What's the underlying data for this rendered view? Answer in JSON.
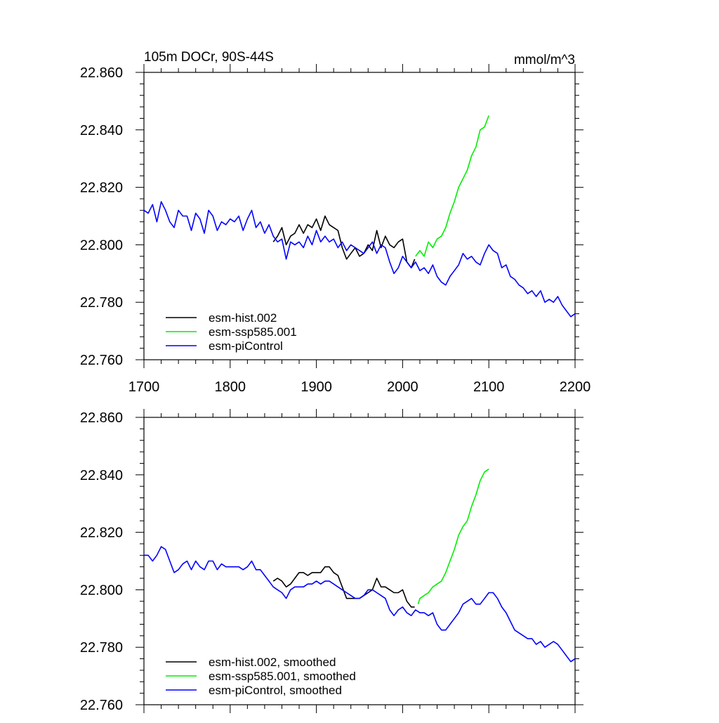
{
  "chart_data": [
    {
      "type": "line",
      "title": "105m DOCr, 90S-44S",
      "units_label": "mmol/m^3",
      "xlim": [
        1700,
        2200
      ],
      "ylim": [
        22.76,
        22.86
      ],
      "x_ticks": [
        "1700",
        "1800",
        "1900",
        "2000",
        "2100",
        "2200"
      ],
      "y_ticks": [
        "22.760",
        "22.780",
        "22.800",
        "22.820",
        "22.840",
        "22.860"
      ],
      "legend_position": "bottom-left",
      "series": [
        {
          "name": "esm-hist.002",
          "color": "#000000",
          "x": [
            1850,
            1855,
            1860,
            1865,
            1870,
            1875,
            1880,
            1885,
            1890,
            1895,
            1900,
            1905,
            1910,
            1915,
            1920,
            1925,
            1930,
            1935,
            1940,
            1945,
            1950,
            1955,
            1960,
            1965,
            1970,
            1975,
            1980,
            1985,
            1990,
            1995,
            2000,
            2005,
            2010,
            2014
          ],
          "y": [
            22.801,
            22.803,
            22.806,
            22.8,
            22.803,
            22.804,
            22.807,
            22.804,
            22.807,
            22.806,
            22.809,
            22.805,
            22.81,
            22.807,
            22.806,
            22.805,
            22.799,
            22.795,
            22.797,
            22.799,
            22.796,
            22.797,
            22.8,
            22.798,
            22.805,
            22.799,
            22.803,
            22.8,
            22.799,
            22.801,
            22.802,
            22.794,
            22.792,
            22.795
          ]
        },
        {
          "name": "esm-ssp585.001",
          "color": "#00ee00",
          "x": [
            2015,
            2020,
            2025,
            2030,
            2035,
            2040,
            2045,
            2050,
            2055,
            2060,
            2065,
            2070,
            2075,
            2080,
            2085,
            2090,
            2095,
            2100
          ],
          "y": [
            22.796,
            22.798,
            22.796,
            22.801,
            22.799,
            22.802,
            22.803,
            22.806,
            22.811,
            22.815,
            22.82,
            22.823,
            22.826,
            22.831,
            22.834,
            22.84,
            22.841,
            22.845
          ]
        },
        {
          "name": "esm-piControl",
          "color": "#0000ff",
          "x": [
            1700,
            1705,
            1710,
            1715,
            1720,
            1725,
            1730,
            1735,
            1740,
            1745,
            1750,
            1755,
            1760,
            1765,
            1770,
            1775,
            1780,
            1785,
            1790,
            1795,
            1800,
            1805,
            1810,
            1815,
            1820,
            1825,
            1830,
            1835,
            1840,
            1845,
            1850,
            1855,
            1860,
            1865,
            1870,
            1875,
            1880,
            1885,
            1890,
            1895,
            1900,
            1905,
            1910,
            1915,
            1920,
            1925,
            1930,
            1935,
            1940,
            1945,
            1950,
            1955,
            1960,
            1965,
            1970,
            1975,
            1980,
            1985,
            1990,
            1995,
            2000,
            2005,
            2010,
            2015,
            2020,
            2025,
            2030,
            2035,
            2040,
            2045,
            2050,
            2055,
            2060,
            2065,
            2070,
            2075,
            2080,
            2085,
            2090,
            2095,
            2100,
            2105,
            2110,
            2115,
            2120,
            2125,
            2130,
            2135,
            2140,
            2145,
            2150,
            2155,
            2160,
            2165,
            2170,
            2175,
            2180,
            2185,
            2190,
            2195,
            2200
          ],
          "y": [
            22.812,
            22.811,
            22.814,
            22.808,
            22.815,
            22.812,
            22.808,
            22.806,
            22.812,
            22.81,
            22.81,
            22.805,
            22.811,
            22.809,
            22.804,
            22.812,
            22.81,
            22.805,
            22.808,
            22.807,
            22.809,
            22.808,
            22.81,
            22.805,
            22.809,
            22.812,
            22.806,
            22.808,
            22.804,
            22.807,
            22.803,
            22.801,
            22.802,
            22.795,
            22.801,
            22.8,
            22.801,
            22.799,
            22.803,
            22.8,
            22.805,
            22.801,
            22.803,
            22.801,
            22.802,
            22.799,
            22.801,
            22.798,
            22.8,
            22.799,
            22.798,
            22.797,
            22.799,
            22.801,
            22.797,
            22.8,
            22.799,
            22.794,
            22.79,
            22.792,
            22.796,
            22.794,
            22.792,
            22.794,
            22.791,
            22.792,
            22.79,
            22.793,
            22.789,
            22.787,
            22.786,
            22.789,
            22.791,
            22.793,
            22.797,
            22.795,
            22.796,
            22.794,
            22.793,
            22.797,
            22.8,
            22.798,
            22.797,
            22.792,
            22.793,
            22.789,
            22.788,
            22.786,
            22.785,
            22.783,
            22.784,
            22.782,
            22.784,
            22.78,
            22.781,
            22.78,
            22.782,
            22.779,
            22.777,
            22.775,
            22.776
          ]
        }
      ]
    },
    {
      "type": "line",
      "xlim": [
        1700,
        2200
      ],
      "ylim": [
        22.76,
        22.86
      ],
      "x_ticks": [],
      "y_ticks": [
        "22.760",
        "22.780",
        "22.800",
        "22.820",
        "22.840",
        "22.860"
      ],
      "legend_position": "bottom-left",
      "series": [
        {
          "name": "esm-hist.002, smoothed",
          "color": "#000000",
          "x": [
            1850,
            1855,
            1860,
            1865,
            1870,
            1875,
            1880,
            1885,
            1890,
            1895,
            1900,
            1905,
            1910,
            1915,
            1920,
            1925,
            1930,
            1935,
            1940,
            1945,
            1950,
            1955,
            1960,
            1965,
            1970,
            1975,
            1980,
            1985,
            1990,
            1995,
            2000,
            2005,
            2010,
            2014
          ],
          "y": [
            22.803,
            22.804,
            22.803,
            22.801,
            22.802,
            22.804,
            22.806,
            22.806,
            22.805,
            22.806,
            22.806,
            22.806,
            22.808,
            22.808,
            22.806,
            22.805,
            22.801,
            22.797,
            22.797,
            22.797,
            22.797,
            22.798,
            22.799,
            22.8,
            22.804,
            22.801,
            22.801,
            22.8,
            22.799,
            22.799,
            22.8,
            22.796,
            22.794,
            22.794
          ]
        },
        {
          "name": "esm-ssp585.001, smoothed",
          "color": "#00ee00",
          "x": [
            2018,
            2020,
            2025,
            2030,
            2035,
            2040,
            2045,
            2050,
            2055,
            2060,
            2065,
            2070,
            2075,
            2080,
            2085,
            2090,
            2095,
            2100
          ],
          "y": [
            22.795,
            22.797,
            22.798,
            22.799,
            22.801,
            22.802,
            22.803,
            22.806,
            22.81,
            22.814,
            22.819,
            22.822,
            22.824,
            22.829,
            22.833,
            22.838,
            22.841,
            22.842
          ]
        },
        {
          "name": "esm-piControl, smoothed",
          "color": "#0000ff",
          "x": [
            1700,
            1705,
            1710,
            1715,
            1720,
            1725,
            1730,
            1735,
            1740,
            1745,
            1750,
            1755,
            1760,
            1765,
            1770,
            1775,
            1780,
            1785,
            1790,
            1795,
            1800,
            1805,
            1810,
            1815,
            1820,
            1825,
            1830,
            1835,
            1840,
            1845,
            1850,
            1855,
            1860,
            1865,
            1870,
            1875,
            1880,
            1885,
            1890,
            1895,
            1900,
            1905,
            1910,
            1915,
            1920,
            1925,
            1930,
            1935,
            1940,
            1945,
            1950,
            1955,
            1960,
            1965,
            1970,
            1975,
            1980,
            1985,
            1990,
            1995,
            2000,
            2005,
            2010,
            2015,
            2020,
            2025,
            2030,
            2035,
            2040,
            2045,
            2050,
            2055,
            2060,
            2065,
            2070,
            2075,
            2080,
            2085,
            2090,
            2095,
            2100,
            2105,
            2110,
            2115,
            2120,
            2125,
            2130,
            2135,
            2140,
            2145,
            2150,
            2155,
            2160,
            2165,
            2170,
            2175,
            2180,
            2185,
            2190,
            2195,
            2200
          ],
          "y": [
            22.812,
            22.812,
            22.81,
            22.812,
            22.815,
            22.814,
            22.81,
            22.806,
            22.807,
            22.809,
            22.81,
            22.807,
            22.81,
            22.808,
            22.807,
            22.81,
            22.81,
            22.807,
            22.809,
            22.808,
            22.808,
            22.808,
            22.808,
            22.807,
            22.808,
            22.81,
            22.807,
            22.807,
            22.805,
            22.803,
            22.801,
            22.8,
            22.799,
            22.797,
            22.8,
            22.801,
            22.801,
            22.801,
            22.802,
            22.802,
            22.803,
            22.802,
            22.803,
            22.803,
            22.802,
            22.801,
            22.8,
            22.799,
            22.798,
            22.797,
            22.797,
            22.798,
            22.8,
            22.8,
            22.799,
            22.798,
            22.797,
            22.793,
            22.791,
            22.793,
            22.794,
            22.792,
            22.791,
            22.793,
            22.792,
            22.792,
            22.791,
            22.792,
            22.788,
            22.786,
            22.786,
            22.788,
            22.79,
            22.792,
            22.795,
            22.796,
            22.797,
            22.795,
            22.795,
            22.797,
            22.799,
            22.799,
            22.797,
            22.794,
            22.792,
            22.789,
            22.786,
            22.785,
            22.784,
            22.783,
            22.783,
            22.781,
            22.782,
            22.78,
            22.781,
            22.782,
            22.781,
            22.779,
            22.777,
            22.775,
            22.776
          ]
        }
      ]
    }
  ]
}
